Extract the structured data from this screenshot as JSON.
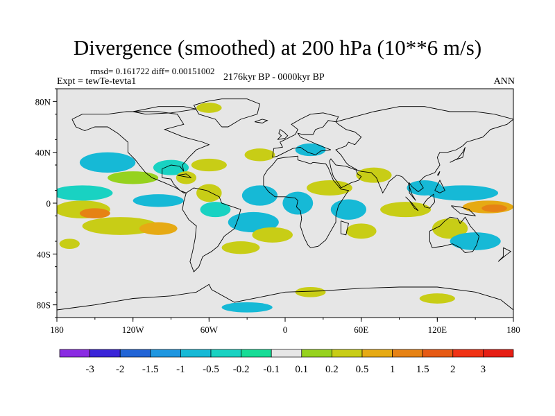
{
  "header": {
    "title": "Divergence (smoothed) at 200 hPa (10**6 m/s)",
    "stats": "rmsd= 0.161722 diff= 0.00151002",
    "experiment": "Expt = tewTe-tevta1",
    "period": "2176kyr BP - 0000kyr BP",
    "season": "ANN"
  },
  "axes": {
    "lat_labels": [
      "80N",
      "40N",
      "0",
      "40S",
      "80S"
    ],
    "lat_values": [
      80,
      40,
      0,
      -40,
      -80
    ],
    "lon_labels": [
      "180",
      "120W",
      "60W",
      "0",
      "60E",
      "120E",
      "180"
    ],
    "lon_values": [
      -180,
      -120,
      -60,
      0,
      60,
      120,
      180
    ],
    "lat_range": [
      -90,
      90
    ],
    "lon_range": [
      -180,
      180
    ]
  },
  "colorbar": {
    "labels": [
      "-3",
      "-2",
      "-1.5",
      "-1",
      "-0.5",
      "-0.2",
      "-0.1",
      "0.1",
      "0.2",
      "0.5",
      "1",
      "1.5",
      "2",
      "3"
    ],
    "colors": [
      "#8a2be2",
      "#3a24d8",
      "#2164d6",
      "#1e96e0",
      "#16b9d6",
      "#19d2c2",
      "#16dc96",
      "#e6e6e6",
      "#96d21e",
      "#c8cd16",
      "#e6aa14",
      "#e68214",
      "#e65a14",
      "#f03214",
      "#e61e14"
    ]
  },
  "colors": {
    "ocean": "#e6e6e6",
    "coast": "#000000",
    "frame": "#000000"
  },
  "field_blobs": [
    {
      "lon": -160,
      "lat": -5,
      "rx": 22,
      "ry": 7,
      "level": 9
    },
    {
      "lon": -150,
      "lat": -8,
      "rx": 12,
      "ry": 4,
      "level": 11
    },
    {
      "lon": -130,
      "lat": -18,
      "rx": 30,
      "ry": 7,
      "level": 9
    },
    {
      "lon": -100,
      "lat": -20,
      "rx": 15,
      "ry": 5,
      "level": 10
    },
    {
      "lon": -160,
      "lat": 8,
      "rx": 24,
      "ry": 6,
      "level": 5
    },
    {
      "lon": -100,
      "lat": 2,
      "rx": 20,
      "ry": 5,
      "level": 4
    },
    {
      "lon": -140,
      "lat": 32,
      "rx": 22,
      "ry": 8,
      "level": 4
    },
    {
      "lon": -120,
      "lat": 20,
      "rx": 20,
      "ry": 5,
      "level": 8
    },
    {
      "lon": -90,
      "lat": 28,
      "rx": 14,
      "ry": 6,
      "level": 5
    },
    {
      "lon": -78,
      "lat": 20,
      "rx": 8,
      "ry": 5,
      "level": 9
    },
    {
      "lon": -60,
      "lat": 8,
      "rx": 10,
      "ry": 7,
      "level": 9
    },
    {
      "lon": -55,
      "lat": -5,
      "rx": 12,
      "ry": 6,
      "level": 5
    },
    {
      "lon": -20,
      "lat": 6,
      "rx": 14,
      "ry": 8,
      "level": 4
    },
    {
      "lon": -25,
      "lat": -15,
      "rx": 20,
      "ry": 8,
      "level": 4
    },
    {
      "lon": -10,
      "lat": -25,
      "rx": 16,
      "ry": 6,
      "level": 9
    },
    {
      "lon": 10,
      "lat": 0,
      "rx": 12,
      "ry": 9,
      "level": 4
    },
    {
      "lon": 35,
      "lat": 12,
      "rx": 18,
      "ry": 6,
      "level": 9
    },
    {
      "lon": 50,
      "lat": -5,
      "rx": 14,
      "ry": 8,
      "level": 4
    },
    {
      "lon": 60,
      "lat": -22,
      "rx": 12,
      "ry": 6,
      "level": 9
    },
    {
      "lon": 70,
      "lat": 22,
      "rx": 14,
      "ry": 6,
      "level": 9
    },
    {
      "lon": 95,
      "lat": -5,
      "rx": 20,
      "ry": 6,
      "level": 9
    },
    {
      "lon": 110,
      "lat": 12,
      "rx": 14,
      "ry": 6,
      "level": 4
    },
    {
      "lon": 140,
      "lat": 8,
      "rx": 28,
      "ry": 6,
      "level": 4
    },
    {
      "lon": 160,
      "lat": -3,
      "rx": 20,
      "ry": 5,
      "level": 10
    },
    {
      "lon": 165,
      "lat": -4,
      "rx": 10,
      "ry": 3,
      "level": 11
    },
    {
      "lon": 130,
      "lat": -20,
      "rx": 14,
      "ry": 8,
      "level": 9
    },
    {
      "lon": 150,
      "lat": -30,
      "rx": 20,
      "ry": 7,
      "level": 4
    },
    {
      "lon": -60,
      "lat": 30,
      "rx": 14,
      "ry": 5,
      "level": 9
    },
    {
      "lon": -20,
      "lat": 38,
      "rx": 12,
      "ry": 5,
      "level": 9
    },
    {
      "lon": 20,
      "lat": 42,
      "rx": 12,
      "ry": 5,
      "level": 4
    },
    {
      "lon": -60,
      "lat": 75,
      "rx": 10,
      "ry": 4,
      "level": 9
    },
    {
      "lon": -35,
      "lat": -35,
      "rx": 15,
      "ry": 5,
      "level": 9
    },
    {
      "lon": 20,
      "lat": -70,
      "rx": 12,
      "ry": 4,
      "level": 9
    },
    {
      "lon": -30,
      "lat": -82,
      "rx": 20,
      "ry": 4,
      "level": 4
    },
    {
      "lon": 120,
      "lat": -75,
      "rx": 14,
      "ry": 4,
      "level": 9
    },
    {
      "lon": -170,
      "lat": -32,
      "rx": 8,
      "ry": 4,
      "level": 9
    }
  ]
}
